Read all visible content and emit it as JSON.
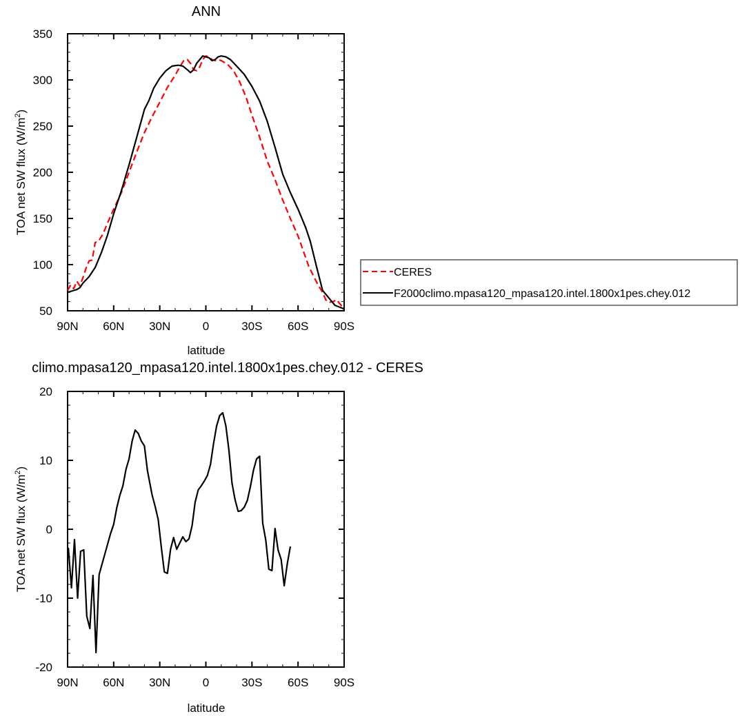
{
  "chart_data": [
    {
      "type": "line",
      "title": "ANN",
      "xlabel": "latitude",
      "ylabel_main": "TOA net SW flux (W/m",
      "ylabel_sup": "2",
      "ylabel_tail": ")",
      "xlim": [
        90,
        -90
      ],
      "ylim": [
        50,
        350
      ],
      "xticks": [
        {
          "value": 90,
          "label": "90N"
        },
        {
          "value": 60,
          "label": "60N"
        },
        {
          "value": 30,
          "label": "30N"
        },
        {
          "value": 0,
          "label": "0"
        },
        {
          "value": -30,
          "label": "30S"
        },
        {
          "value": -60,
          "label": "60S"
        },
        {
          "value": -90,
          "label": "90S"
        }
      ],
      "yticks": [
        50,
        100,
        150,
        200,
        250,
        300,
        350
      ],
      "legend_position": "right",
      "series": [
        {
          "name": "CERES",
          "color": "#ff0000",
          "dash": "dashed",
          "points": [
            [
              90,
              72
            ],
            [
              88,
              78
            ],
            [
              86,
              74
            ],
            [
              84,
              82
            ],
            [
              82,
              77
            ],
            [
              80,
              86
            ],
            [
              78,
              96
            ],
            [
              76,
              104
            ],
            [
              74,
              105
            ],
            [
              72,
              124
            ],
            [
              70,
              125
            ],
            [
              67,
              133
            ],
            [
              64,
              145
            ],
            [
              60,
              160
            ],
            [
              55,
              178
            ],
            [
              50,
              200
            ],
            [
              45,
              222
            ],
            [
              40,
              243
            ],
            [
              35,
              260
            ],
            [
              30,
              276
            ],
            [
              25,
              292
            ],
            [
              20,
              305
            ],
            [
              17,
              314
            ],
            [
              14,
              322
            ],
            [
              12,
              322
            ],
            [
              10,
              318
            ],
            [
              8,
              311
            ],
            [
              6,
              310
            ],
            [
              4,
              314
            ],
            [
              2,
              322
            ],
            [
              0,
              326
            ],
            [
              -2,
              325
            ],
            [
              -4,
              322
            ],
            [
              -6,
              321
            ],
            [
              -8,
              322
            ],
            [
              -10,
              321
            ],
            [
              -14,
              317
            ],
            [
              -18,
              310
            ],
            [
              -22,
              298
            ],
            [
              -26,
              282
            ],
            [
              -30,
              262
            ],
            [
              -35,
              238
            ],
            [
              -40,
              212
            ],
            [
              -45,
              192
            ],
            [
              -50,
              170
            ],
            [
              -55,
              150
            ],
            [
              -60,
              131
            ],
            [
              -64,
              112
            ],
            [
              -67,
              98
            ],
            [
              -70,
              88
            ],
            [
              -73,
              78
            ],
            [
              -76,
              70
            ],
            [
              -78,
              62
            ],
            [
              -80,
              59
            ],
            [
              -83,
              60
            ],
            [
              -85,
              62
            ],
            [
              -87,
              58
            ],
            [
              -90,
              52
            ]
          ]
        },
        {
          "name": "F2000climo.mpasa120_mpasa120.intel.1800x1pes.chey.012",
          "color": "#000000",
          "dash": "solid",
          "points": [
            [
              90,
              70
            ],
            [
              86,
              72
            ],
            [
              84,
              73
            ],
            [
              82,
              75
            ],
            [
              80,
              80
            ],
            [
              76,
              87
            ],
            [
              72,
              97
            ],
            [
              68,
              113
            ],
            [
              64,
              132
            ],
            [
              60,
              155
            ],
            [
              55,
              180
            ],
            [
              50,
              208
            ],
            [
              45,
              238
            ],
            [
              40,
              268
            ],
            [
              37,
              278
            ],
            [
              34,
              291
            ],
            [
              30,
              302
            ],
            [
              26,
              310
            ],
            [
              22,
              315
            ],
            [
              18,
              316
            ],
            [
              15,
              315
            ],
            [
              12,
              311
            ],
            [
              10,
              308
            ],
            [
              8,
              311
            ],
            [
              6,
              318
            ],
            [
              4,
              322
            ],
            [
              2,
              326
            ],
            [
              0,
              325
            ],
            [
              -2,
              324
            ],
            [
              -4,
              321
            ],
            [
              -6,
              322
            ],
            [
              -8,
              325
            ],
            [
              -10,
              326
            ],
            [
              -13,
              325
            ],
            [
              -16,
              322
            ],
            [
              -20,
              315
            ],
            [
              -25,
              306
            ],
            [
              -30,
              293
            ],
            [
              -35,
              277
            ],
            [
              -40,
              255
            ],
            [
              -45,
              227
            ],
            [
              -50,
              198
            ],
            [
              -55,
              178
            ],
            [
              -60,
              160
            ],
            [
              -65,
              140
            ],
            [
              -68,
              125
            ],
            [
              -72,
              98
            ],
            [
              -76,
              72
            ],
            [
              -80,
              64
            ],
            [
              -84,
              56
            ],
            [
              -87,
              54
            ],
            [
              -90,
              52
            ]
          ]
        }
      ]
    },
    {
      "type": "line",
      "title": "climo.mpasa120_mpasa120.intel.1800x1pes.chey.012 - CERES",
      "xlabel": "latitude",
      "ylabel_main": "TOA net SW flux (W/m",
      "ylabel_sup": "2",
      "ylabel_tail": ")",
      "xlim": [
        90,
        -90
      ],
      "ylim": [
        -20,
        20
      ],
      "xticks": [
        {
          "value": 90,
          "label": "90N"
        },
        {
          "value": 60,
          "label": "60N"
        },
        {
          "value": 30,
          "label": "30N"
        },
        {
          "value": 0,
          "label": "0"
        },
        {
          "value": -30,
          "label": "30S"
        },
        {
          "value": -60,
          "label": "60S"
        },
        {
          "value": -90,
          "label": "90S"
        }
      ],
      "yticks": [
        -20,
        -10,
        0,
        10,
        20
      ],
      "series": [
        {
          "color": "#000000",
          "dash": "solid",
          "points": [
            [
              89.5,
              -2.7
            ],
            [
              87.5,
              -8.5
            ],
            [
              85.5,
              -1.5
            ],
            [
              83.5,
              -10
            ],
            [
              81.5,
              -3.2
            ],
            [
              79.5,
              -3
            ],
            [
              77.5,
              -12.6
            ],
            [
              75.5,
              -14.4
            ],
            [
              73.5,
              -6.7
            ],
            [
              71.5,
              -17.9
            ],
            [
              69.5,
              -6.6
            ],
            [
              67.5,
              -5
            ],
            [
              65,
              -3
            ],
            [
              62,
              -0.6
            ],
            [
              60,
              0.7
            ],
            [
              58,
              3.1
            ],
            [
              56,
              4.9
            ],
            [
              54,
              6.3
            ],
            [
              52,
              8.7
            ],
            [
              50,
              10.2
            ],
            [
              48,
              12.8
            ],
            [
              46,
              14.4
            ],
            [
              44,
              13.9
            ],
            [
              42,
              12.8
            ],
            [
              40,
              12.1
            ],
            [
              38,
              8.5
            ],
            [
              35,
              5
            ],
            [
              33,
              3.3
            ],
            [
              31,
              1.4
            ],
            [
              29,
              -2.6
            ],
            [
              27,
              -6.2
            ],
            [
              25,
              -6.4
            ],
            [
              23,
              -2.9
            ],
            [
              21,
              -1.2
            ],
            [
              19,
              -2.9
            ],
            [
              17,
              -2
            ],
            [
              15,
              -1.1
            ],
            [
              13,
              -1.8
            ],
            [
              11,
              -1.4
            ],
            [
              9,
              0.5
            ],
            [
              7,
              3.9
            ],
            [
              5,
              5.7
            ],
            [
              3,
              6.3
            ],
            [
              1,
              7
            ],
            [
              -1,
              7.8
            ],
            [
              -3,
              9.4
            ],
            [
              -5,
              12.4
            ],
            [
              -7,
              15
            ],
            [
              -9,
              16.5
            ],
            [
              -11,
              16.9
            ],
            [
              -13,
              15
            ],
            [
              -15,
              11.5
            ],
            [
              -17,
              6.7
            ],
            [
              -19,
              4.3
            ],
            [
              -21,
              2.6
            ],
            [
              -23,
              2.7
            ],
            [
              -25,
              3.2
            ],
            [
              -27,
              4.2
            ],
            [
              -29,
              6.2
            ],
            [
              -31,
              8.6
            ],
            [
              -33,
              10.2
            ],
            [
              -35,
              10.6
            ],
            [
              -37,
              0.9
            ],
            [
              -39,
              -1.6
            ],
            [
              -41,
              -5.8
            ],
            [
              -43,
              -6
            ],
            [
              -45,
              0.1
            ],
            [
              -47,
              -3
            ],
            [
              -49,
              -4.4
            ],
            [
              -51,
              -8.2
            ],
            [
              -53,
              -5
            ],
            [
              -55,
              -2.5
            ]
          ]
        }
      ]
    }
  ],
  "legend": {
    "ceres_label": "CERES",
    "model_label": "F2000climo.mpasa120_mpasa120.intel.1800x1pes.chey.012"
  }
}
